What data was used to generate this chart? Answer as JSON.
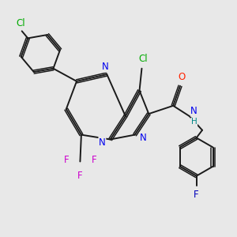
{
  "background_color": "#e8e8e8",
  "bond_color": "#1a1a1a",
  "atom_colors": {
    "N": "#0000ee",
    "Cl": "#00aa00",
    "F": "#cc00cc",
    "O": "#ff2200",
    "H": "#008888",
    "F_blue": "#0000bb"
  },
  "figsize": [
    3.0,
    3.0
  ],
  "dpi": 100
}
